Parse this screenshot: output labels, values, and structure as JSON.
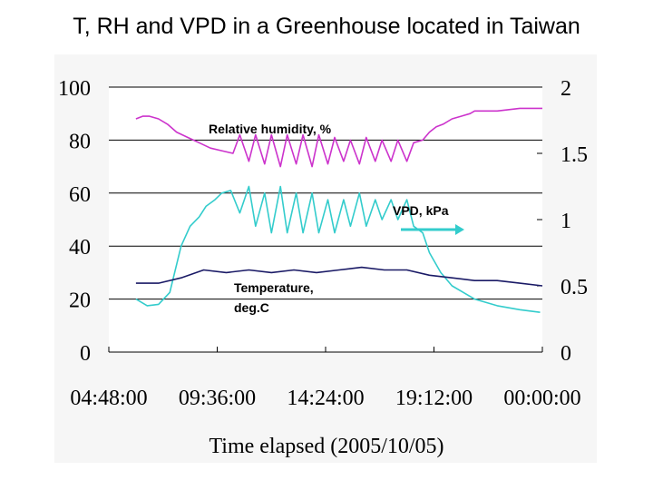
{
  "title": "T,  RH and VPD in a Greenhouse located in Taiwan",
  "chart_data": {
    "type": "line",
    "title": "T,  RH and VPD in a Greenhouse located in Taiwan",
    "xlabel": "Time elapsed (2005/10/05)",
    "x_ticks": [
      "04:48:00",
      "09:36:00",
      "14:24:00",
      "19:12:00",
      "00:00:00"
    ],
    "x_range_hours": [
      4.8,
      24
    ],
    "left_axis": {
      "ticks": [
        "0",
        "20",
        "40",
        "60",
        "80",
        "100"
      ],
      "ylim": [
        0,
        100
      ]
    },
    "right_axis": {
      "ticks": [
        "0",
        "0.5",
        "1",
        "1.5",
        "2"
      ],
      "ylim": [
        0,
        2
      ]
    },
    "series": [
      {
        "name": "Relative humidity, %",
        "axis": "left",
        "color": "#cc33cc",
        "x": [
          6,
          6.3,
          6.6,
          7,
          7.4,
          7.8,
          8.3,
          8.8,
          9.3,
          9.8,
          10.3,
          10.6,
          11.0,
          11.3,
          11.7,
          12.0,
          12.4,
          12.7,
          13.1,
          13.4,
          13.8,
          14.1,
          14.5,
          14.8,
          15.2,
          15.5,
          15.9,
          16.2,
          16.6,
          16.9,
          17.3,
          17.6,
          18.0,
          18.3,
          18.7,
          19.0,
          19.3,
          19.6,
          20.0,
          20.4,
          20.8,
          21.0,
          22.0,
          23.0,
          24.0
        ],
        "y": [
          88,
          89,
          89,
          88,
          86,
          83,
          81,
          79,
          77,
          76,
          75,
          82,
          72,
          82,
          71,
          82,
          70,
          82,
          71,
          82,
          70,
          82,
          71,
          81,
          72,
          80,
          71,
          81,
          72,
          80,
          72,
          80,
          72,
          79,
          80,
          83,
          85,
          86,
          88,
          89,
          90,
          91,
          91,
          92,
          92
        ]
      },
      {
        "name": "VPD, kPa",
        "axis": "right",
        "color": "#33cccc",
        "x": [
          6,
          6.5,
          7,
          7.5,
          8.0,
          8.4,
          8.8,
          9.1,
          9.5,
          9.8,
          10.2,
          10.6,
          11.0,
          11.3,
          11.7,
          12.0,
          12.4,
          12.7,
          13.1,
          13.4,
          13.8,
          14.1,
          14.5,
          14.8,
          15.2,
          15.5,
          15.9,
          16.2,
          16.6,
          16.9,
          17.3,
          17.6,
          18.0,
          18.3,
          18.7,
          19.0,
          19.5,
          20.0,
          20.5,
          21.0,
          22.0,
          23.0,
          23.9
        ],
        "y": [
          0.4,
          0.35,
          0.36,
          0.45,
          0.8,
          0.95,
          1.02,
          1.1,
          1.15,
          1.2,
          1.22,
          1.05,
          1.25,
          0.95,
          1.2,
          0.9,
          1.25,
          0.9,
          1.2,
          0.9,
          1.2,
          0.9,
          1.15,
          0.9,
          1.15,
          0.95,
          1.2,
          0.95,
          1.15,
          1.0,
          1.15,
          1.0,
          1.15,
          0.95,
          0.9,
          0.75,
          0.6,
          0.5,
          0.45,
          0.4,
          0.35,
          0.32,
          0.3
        ]
      },
      {
        "name": "Temperature, deg.C",
        "axis": "left",
        "color": "#1a1a66",
        "x": [
          6,
          7,
          8,
          9,
          10,
          11,
          12,
          13,
          14,
          15,
          16,
          17,
          18,
          19,
          20,
          21,
          22,
          23,
          24
        ],
        "y": [
          26,
          26,
          28,
          31,
          30,
          31,
          30,
          31,
          30,
          31,
          32,
          31,
          31,
          29,
          28,
          27,
          27,
          26,
          25
        ]
      }
    ],
    "annotations": [
      {
        "text": "Relative humidity, %",
        "series": "Relative humidity, %"
      },
      {
        "text": "VPD, kPa",
        "series": "VPD, kPa"
      },
      {
        "text": "Temperature, deg.C",
        "series": "Temperature, deg.C"
      }
    ]
  },
  "labels": {
    "rh": "Relative humidity, %",
    "vpd": "VPD, kPa",
    "temp_line1": "Temperature,",
    "temp_line2": "deg.C"
  }
}
